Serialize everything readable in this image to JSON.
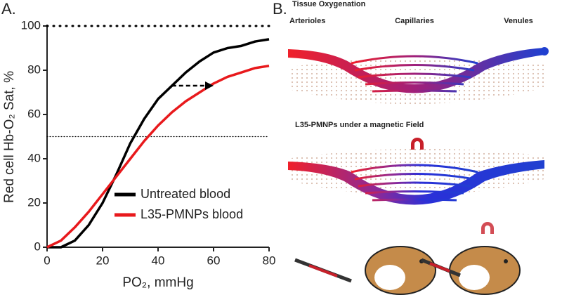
{
  "chart_data": {
    "type": "line",
    "panel_label": "A.",
    "x_label": "PO₂, mmHg",
    "y_label": "Red cell Hb-O₂ Sat, %",
    "x": [
      0,
      5,
      10,
      15,
      20,
      25,
      30,
      35,
      40,
      45,
      50,
      55,
      60,
      65,
      70,
      75,
      80
    ],
    "series": [
      {
        "name": "Untreated blood",
        "color": "#000000",
        "values": [
          0,
          0,
          3,
          10,
          20,
          33,
          47,
          58,
          67,
          73,
          79,
          84,
          88,
          90,
          91,
          93,
          94
        ]
      },
      {
        "name": "L35-PMNPs blood",
        "color": "#e8191c",
        "values": [
          0,
          3,
          9,
          16,
          24,
          32,
          40,
          48,
          55,
          61,
          66,
          70,
          74,
          77,
          79,
          81,
          82
        ]
      }
    ],
    "xlim": [
      0,
      80
    ],
    "xticks": [
      0,
      20,
      40,
      60,
      80
    ],
    "ylim": [
      0,
      100
    ],
    "yticks": [
      0,
      20,
      40,
      60,
      80,
      100
    ],
    "reference_lines": [
      100,
      50
    ],
    "arrow": {
      "from": 45,
      "to": 60,
      "y": 73
    },
    "legend": "lower right"
  },
  "panel_b": {
    "label": "B.",
    "title": "Tissue Oxygenation",
    "regions": [
      "Arterioles",
      "Capillaries",
      "Venules"
    ],
    "subtitle": "L35-PMNPs under a magnetic Field"
  }
}
